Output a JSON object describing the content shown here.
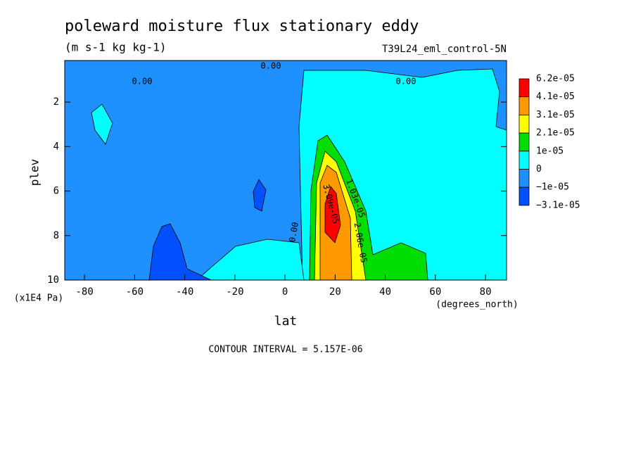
{
  "chart_data": {
    "type": "contour",
    "title": "poleward moisture flux stationary eddy",
    "subtitle": "(m s-1 kg kg-1)",
    "dataset": "T39L24_eml_control-5N",
    "x_label": "lat",
    "x_unit": "(degrees_north)",
    "y_label": "plev",
    "y_unit": "(x1E4 Pa)",
    "note": "CONTOUR INTERVAL = 5.157E-06",
    "xlim": [
      -87.9,
      88.4
    ],
    "xticks": [
      -80,
      -60,
      -40,
      -20,
      0,
      20,
      40,
      60,
      80
    ],
    "ylim": [
      0.13,
      10
    ],
    "yticks": [
      2,
      4,
      6,
      8,
      10
    ],
    "y_inverted": true,
    "levels": [
      {
        "value": 6.2e-05,
        "label": "6.2e-05"
      },
      {
        "value": 4.1e-05,
        "label": "4.1e-05"
      },
      {
        "value": 3.1e-05,
        "label": "3.1e-05"
      },
      {
        "value": 2.1e-05,
        "label": "2.1e-05"
      },
      {
        "value": 1e-05,
        "label": "1e-05"
      },
      0,
      {
        "value": -1e-05,
        "label": "−1e-05"
      },
      {
        "value": -3.1e-05,
        "label": "−3.1e-05"
      }
    ],
    "band_colors": [
      "#ff0000",
      "#ff9900",
      "#ffff00",
      "#00dd00",
      "#00ffff",
      "#1e90ff",
      "#0050ff"
    ],
    "contour_labels": [
      "0.00",
      "0.00",
      "0.00",
      "0.00",
      "1.03e-05",
      "2.06e-05",
      "3.09e-05"
    ]
  }
}
